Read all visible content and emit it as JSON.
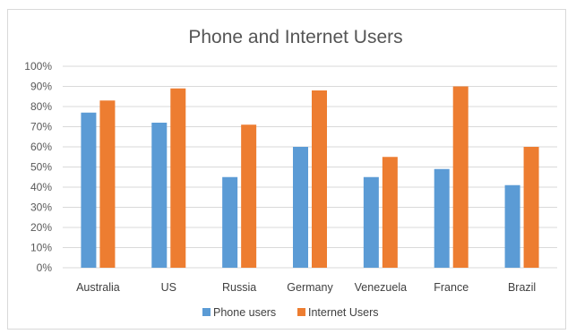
{
  "chart_data": {
    "type": "bar",
    "title": "Phone and Internet Users",
    "categories": [
      "Australia",
      "US",
      "Russia",
      "Germany",
      "Venezuela",
      "France",
      "Brazil"
    ],
    "series": [
      {
        "name": "Phone users",
        "color": "#5B9BD5",
        "values": [
          77,
          72,
          45,
          60,
          45,
          49,
          41
        ]
      },
      {
        "name": "Internet Users",
        "color": "#ED7D31",
        "values": [
          83,
          89,
          71,
          88,
          55,
          90,
          60
        ]
      }
    ],
    "ylim": [
      0,
      100
    ],
    "yticks": [
      "0%",
      "10%",
      "20%",
      "30%",
      "40%",
      "50%",
      "60%",
      "70%",
      "80%",
      "90%",
      "100%"
    ],
    "grid": true,
    "legend_position": "bottom"
  }
}
